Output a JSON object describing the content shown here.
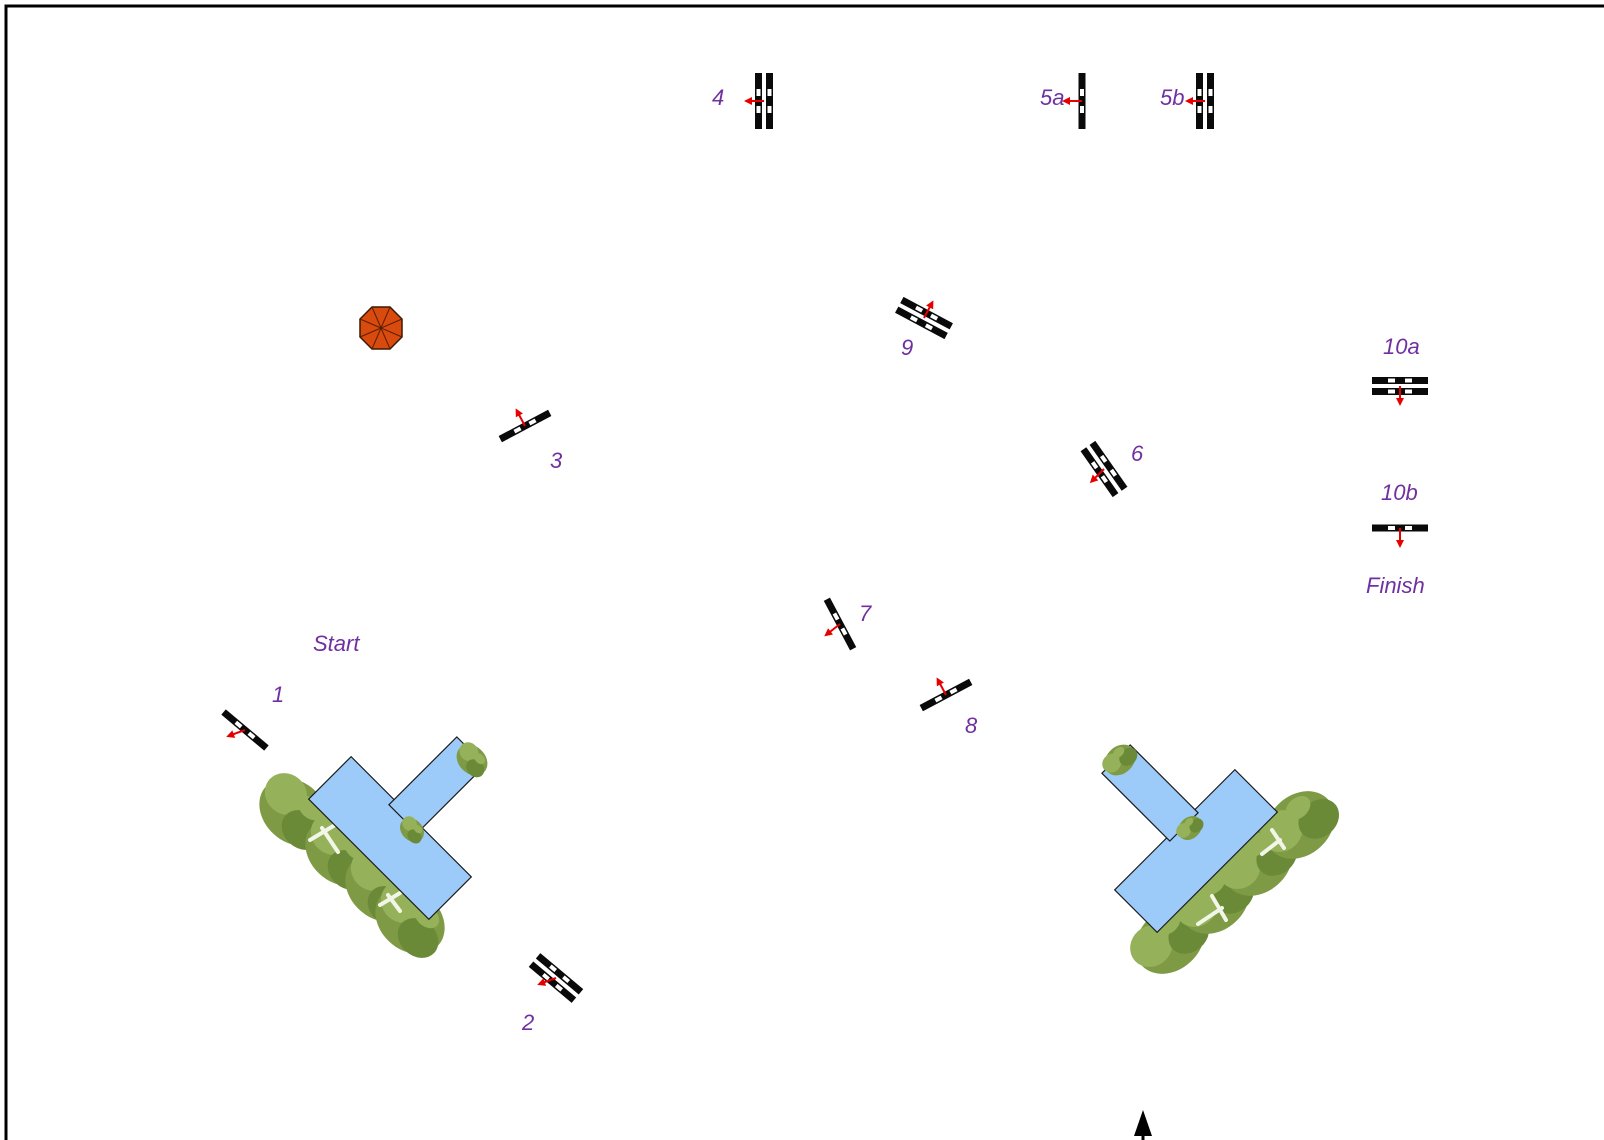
{
  "course": {
    "start_label": "Start",
    "finish_label": "Finish",
    "obstacles": [
      {
        "id": "1",
        "label": "1",
        "type": "vertical",
        "direction": "down-left"
      },
      {
        "id": "2",
        "label": "2",
        "type": "oxer",
        "direction": "down-left"
      },
      {
        "id": "3",
        "label": "3",
        "type": "vertical",
        "direction": "up"
      },
      {
        "id": "4",
        "label": "4",
        "type": "oxer",
        "direction": "right"
      },
      {
        "id": "5a",
        "label": "5a",
        "type": "vertical",
        "direction": "right"
      },
      {
        "id": "5b",
        "label": "5b",
        "type": "oxer",
        "direction": "right"
      },
      {
        "id": "6",
        "label": "6",
        "type": "oxer",
        "direction": "left"
      },
      {
        "id": "7",
        "label": "7",
        "type": "vertical",
        "direction": "left"
      },
      {
        "id": "8",
        "label": "8",
        "type": "vertical",
        "direction": "up"
      },
      {
        "id": "9",
        "label": "9",
        "type": "oxer",
        "direction": "up"
      },
      {
        "id": "10a",
        "label": "10a",
        "type": "oxer",
        "direction": "down"
      },
      {
        "id": "10b",
        "label": "10b",
        "type": "vertical",
        "direction": "down"
      }
    ]
  },
  "colors": {
    "label": "#7030a0",
    "water": "#9dcbf9",
    "hedge": "#7e9a45",
    "umbrella": "#d94a0f",
    "arrow": "#e60000"
  },
  "icons": {
    "umbrella": "octagon-umbrella-icon",
    "entrance": "north-arrow-icon"
  }
}
